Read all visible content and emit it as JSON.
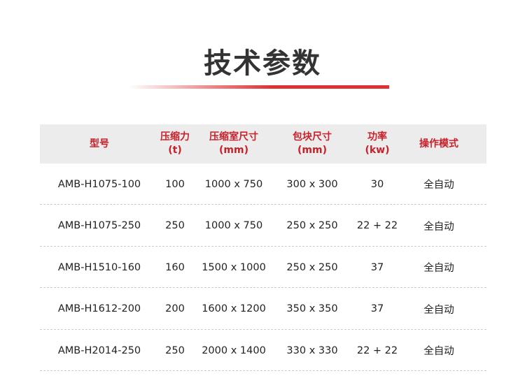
{
  "title": "技术参数",
  "columns": [
    "型号",
    "压缩力\n(t)",
    "压缩室尺寸\n(mm)",
    "包块尺寸\n(mm)",
    "功率\n(kw)",
    "操作模式"
  ],
  "rows": [
    [
      "AMB-H1075-100",
      "100",
      "1000 x 750",
      "300 x 300",
      "30",
      "全自动"
    ],
    [
      "AMB-H1075-250",
      "250",
      "1000 x 750",
      "250 x 250",
      "22 + 22",
      "全自动"
    ],
    [
      "AMB-H1510-160",
      "160",
      "1500 x 1000",
      "250 x 250",
      "37",
      "全自动"
    ],
    [
      "AMB-H1612-200",
      "200",
      "1600 x 1200",
      "350 x 350",
      "37",
      "全自动"
    ],
    [
      "AMB-H2014-250",
      "250",
      "2000 x 1400",
      "330 x 330",
      "22 + 22",
      "全自动"
    ]
  ],
  "colors": {
    "accent": "#c8202a",
    "header_bg": "#ececec"
  }
}
